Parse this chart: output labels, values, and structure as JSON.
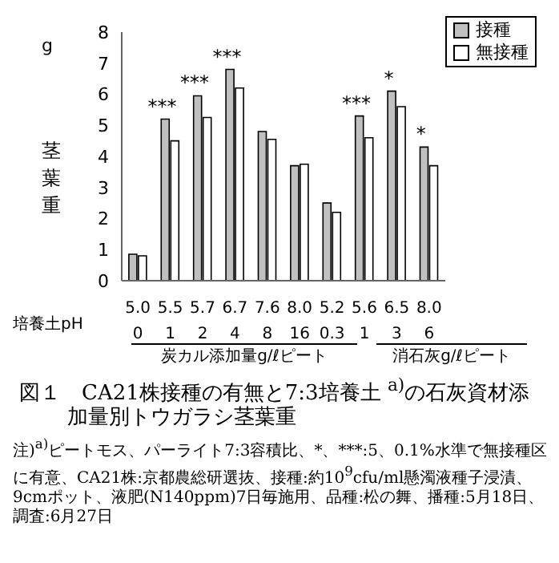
{
  "chart_data": {
    "type": "bar",
    "title": "図１　CA21株接種の有無と7:3培養土 $^{a)}$の石灰資材添加量別トウガラシ茎葉重",
    "ylabel": "茎葉重",
    "categories": [
      "5.0\n0",
      "5.5\n1",
      "5.7\n2",
      "6.7\n4",
      "7.6\n8",
      "8.0\n16",
      "5.2\n0.3",
      "5.6\n1",
      "6.5\n3",
      "8.0\n6"
    ],
    "series": [
      {
        "name": "接種",
        "color": "#c0c0c0",
        "values": [
          0.85,
          5.2,
          5.95,
          6.8,
          4.8,
          3.7,
          2.5,
          5.3,
          6.1,
          4.3
        ]
      },
      {
        "name": "無接種",
        "color": "#ffffff",
        "values": [
          0.8,
          4.5,
          5.25,
          6.2,
          4.55,
          3.75,
          2.2,
          4.6,
          5.6,
          3.7
        ]
      }
    ],
    "ylim": [
      0,
      8
    ],
    "yticks": [
      0,
      1,
      2,
      3,
      4,
      5,
      6,
      7,
      8
    ],
    "legend": "top right",
    "annotations": [
      "g",
      "培養土pH",
      "炭カル添加量g/ℓピート",
      "消石灰g/ℓピート",
      "注)$^{a)}$ピートモス、パーライト7:3容積比、*、***:5、0.1%水準で無接種区に有意、CA21株:京都農総研選抜、接種:約10$^{9}$cfu/ml懸濁液種子浸漬、9cmポット、液肥(N140ppm)7日毎施用、品種:松の舞、播種:5月18日、調査:6月27日",
      {
        "text": "***",
        "x": "5.5\n1",
        "y": 5.2
      },
      {
        "text": "***",
        "x": "5.7\n2",
        "y": 5.95
      },
      {
        "text": "***",
        "x": "6.7\n4",
        "y": 6.8
      },
      {
        "text": "***",
        "x": "5.6\n1",
        "y": 5.3
      },
      {
        "text": "*",
        "x": "6.5\n3",
        "y": 6.1
      },
      {
        "text": "*",
        "x": "8.0\n6",
        "y": 4.3
      }
    ]
  }
}
